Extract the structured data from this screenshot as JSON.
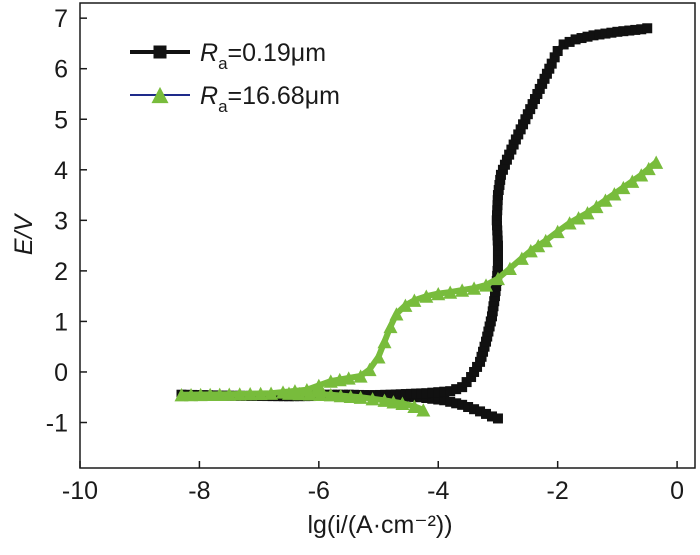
{
  "chart_data": {
    "type": "line",
    "xlabel": "lg(i/(A·cm⁻²))",
    "ylabel": "E/V",
    "xlim": [
      -10,
      0.3
    ],
    "ylim": [
      -1.9,
      7.3
    ],
    "xticks": [
      -10,
      -8,
      -6,
      -4,
      -2,
      0
    ],
    "xtick_labels": [
      "-10",
      "-8",
      "-6",
      "-4",
      "-2",
      "0"
    ],
    "yticks": [
      -1,
      0,
      1,
      2,
      3,
      4,
      5,
      6,
      7
    ],
    "ytick_labels": [
      "-1",
      "0",
      "1",
      "2",
      "3",
      "4",
      "5",
      "6",
      "7"
    ],
    "grid": false,
    "legend_position": "top-left",
    "series": [
      {
        "name_main": "R",
        "name_sub": "a",
        "name_rest": "=0.19μm",
        "color": "#111111",
        "line_color": "#111111",
        "marker": "square",
        "x": [
          -8.3,
          -7.5,
          -6.5,
          -5.5,
          -4.8,
          -4.2,
          -3.8,
          -3.6,
          -3.45,
          -3.3,
          -3.2,
          -3.1,
          -3.05,
          -3.02,
          -3.0,
          -3.0,
          -3.02,
          -3.0,
          -2.95,
          -2.85,
          -2.7,
          -2.5,
          -2.3,
          -2.1,
          -2.0,
          -1.9,
          -1.7,
          -1.4,
          -1.0,
          -0.6,
          -0.5
        ],
        "y": [
          -0.45,
          -0.47,
          -0.48,
          -0.47,
          -0.45,
          -0.42,
          -0.38,
          -0.3,
          -0.1,
          0.2,
          0.6,
          1.1,
          1.5,
          1.8,
          2.1,
          2.5,
          3.0,
          3.5,
          3.9,
          4.2,
          4.6,
          5.1,
          5.6,
          6.1,
          6.35,
          6.48,
          6.58,
          6.66,
          6.73,
          6.78,
          6.8
        ]
      },
      {
        "name_main": "R",
        "name_sub": "a",
        "name_rest": "=16.68μm",
        "color": "#78bc3c",
        "line_color": "#1e2a8a",
        "marker": "triangle",
        "x": [
          -8.3,
          -7.5,
          -6.8,
          -6.2,
          -5.8,
          -5.5,
          -5.3,
          -5.15,
          -5.0,
          -4.9,
          -4.8,
          -4.7,
          -4.55,
          -4.4,
          -4.2,
          -4.0,
          -3.8,
          -3.6,
          -3.4,
          -3.2,
          -3.0,
          -2.8,
          -2.6,
          -2.45,
          -2.2,
          -2.0,
          -1.8,
          -1.5,
          -1.2,
          -0.9,
          -0.6,
          -0.35
        ],
        "y": [
          -0.45,
          -0.44,
          -0.42,
          -0.35,
          -0.18,
          -0.12,
          -0.08,
          0.05,
          0.3,
          0.6,
          0.9,
          1.15,
          1.32,
          1.42,
          1.5,
          1.55,
          1.58,
          1.62,
          1.66,
          1.72,
          1.85,
          2.05,
          2.25,
          2.4,
          2.6,
          2.78,
          2.95,
          3.15,
          3.4,
          3.65,
          3.9,
          4.15
        ]
      }
    ],
    "extra_branches": [
      {
        "series": 0,
        "x": [
          -6.5,
          -5.5,
          -4.8,
          -4.3,
          -3.9,
          -3.6,
          -3.3,
          -3.1,
          -3.0
        ],
        "y": [
          -0.45,
          -0.45,
          -0.47,
          -0.5,
          -0.56,
          -0.65,
          -0.78,
          -0.88,
          -0.92
        ]
      },
      {
        "series": 1,
        "x": [
          -6.5,
          -5.8,
          -5.3,
          -4.9,
          -4.6,
          -4.4,
          -4.25
        ],
        "y": [
          -0.42,
          -0.45,
          -0.5,
          -0.56,
          -0.62,
          -0.68,
          -0.75
        ]
      }
    ]
  }
}
